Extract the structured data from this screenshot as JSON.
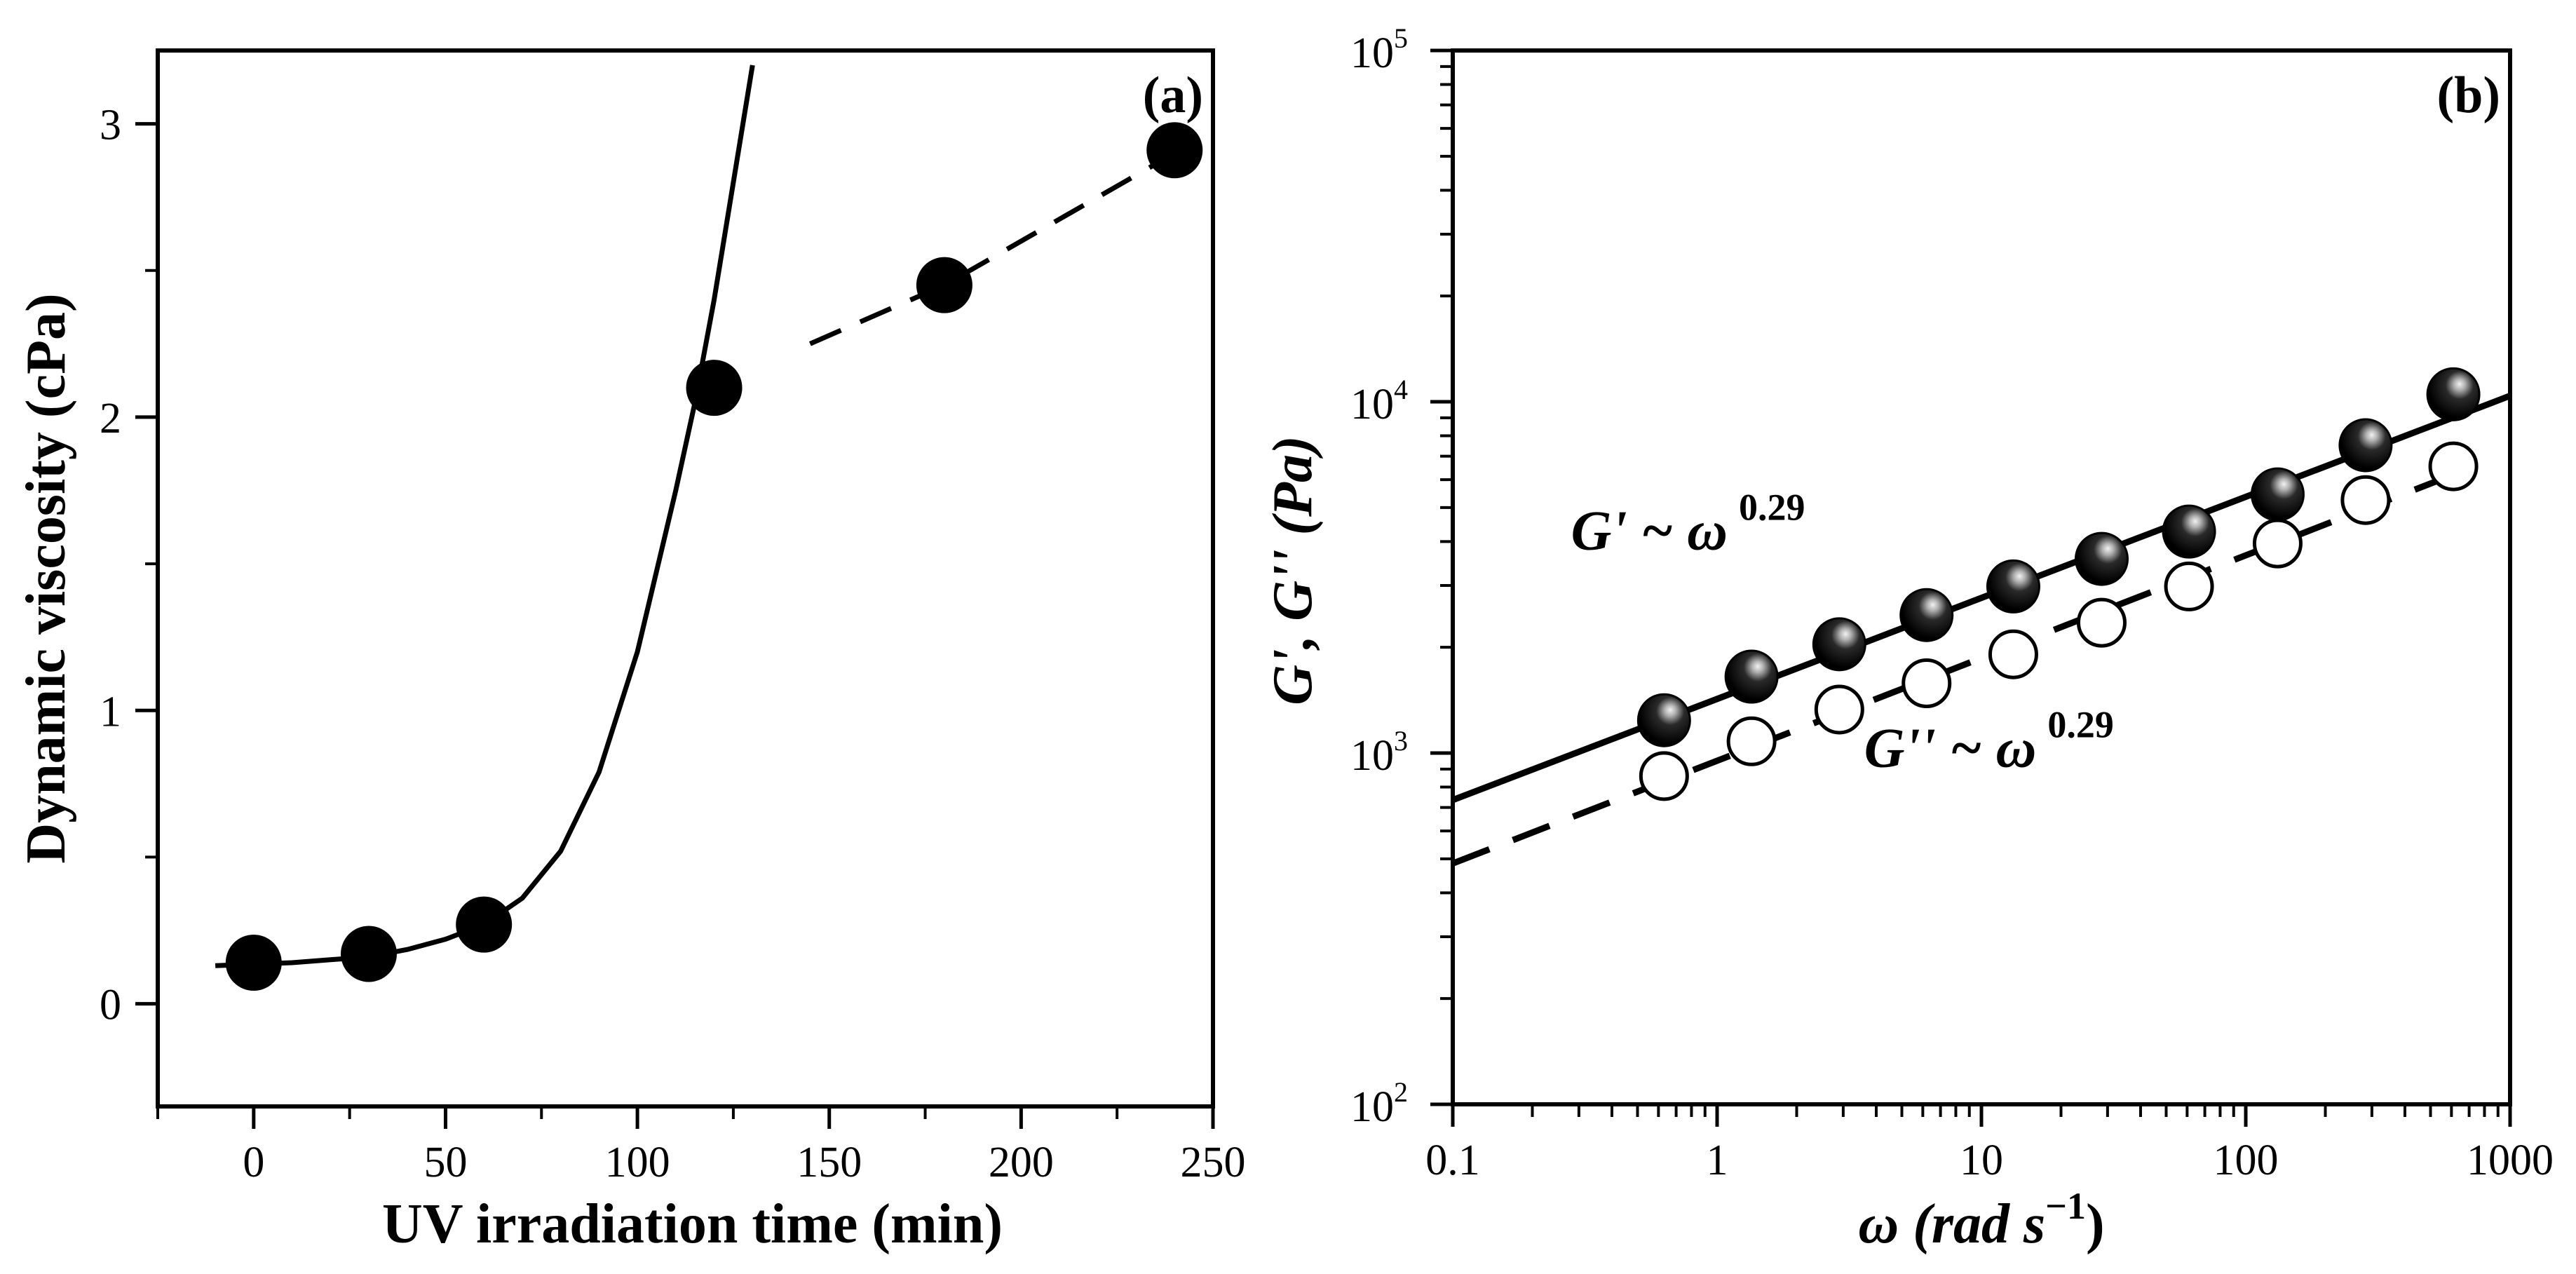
{
  "chart_data": [
    {
      "type": "scatter",
      "panel_label": "(a)",
      "xlabel": "UV irradiation time (min)",
      "ylabel": "Dynamic viscosity (cPa)",
      "xlim": [
        -25,
        250
      ],
      "ylim": [
        -0.35,
        3.25
      ],
      "x_ticks": [
        0,
        50,
        100,
        150,
        200,
        250
      ],
      "y_ticks": [
        0,
        1,
        2,
        3
      ],
      "grid": false,
      "legend": "none",
      "series": [
        {
          "marker": "filled-circle",
          "x": [
            0,
            30,
            60,
            120,
            180,
            240
          ],
          "y": [
            0.14,
            0.17,
            0.27,
            2.1,
            2.45,
            2.91
          ]
        }
      ],
      "fits": [
        {
          "style": "solid",
          "x": [
            -10,
            0,
            10,
            20,
            30,
            40,
            50,
            60,
            70,
            80,
            90,
            100,
            110,
            115,
            120,
            125,
            130
          ],
          "y": [
            0.13,
            0.135,
            0.14,
            0.15,
            0.16,
            0.185,
            0.22,
            0.27,
            0.36,
            0.52,
            0.79,
            1.2,
            1.75,
            2.05,
            2.4,
            2.8,
            3.2
          ]
        },
        {
          "style": "dashed",
          "x": [
            145,
            180,
            240
          ],
          "y": [
            2.25,
            2.45,
            2.9
          ]
        }
      ]
    },
    {
      "type": "scatter",
      "panel_label": "(b)",
      "xlabel": "ω (rad s",
      "xlabel_exp": "−1",
      "xlabel_close": ")",
      "ylabel": "G', G'' (Pa)",
      "x_scale": "log",
      "y_scale": "log",
      "xlim": [
        0.1,
        1000
      ],
      "ylim": [
        100,
        100000
      ],
      "x_ticks": [
        0.1,
        1,
        10,
        100,
        1000
      ],
      "x_tick_labels": [
        "0.1",
        "1",
        "10",
        "100",
        "1000"
      ],
      "y_ticks": [
        100,
        1000,
        10000,
        100000
      ],
      "y_tick_base": "10",
      "y_tick_exps": [
        "2",
        "3",
        "4",
        "5"
      ],
      "grid": false,
      "legend": "none",
      "series": [
        {
          "name": "G'",
          "marker": "filled-circle",
          "x": [
            0.63,
            1.35,
            2.9,
            6.2,
            13.2,
            28.5,
            61,
            132,
            284,
            610
          ],
          "y": [
            1240,
            1650,
            2040,
            2470,
            2980,
            3570,
            4270,
            5450,
            7520,
            10500
          ]
        },
        {
          "name": "G''",
          "marker": "open-circle",
          "x": [
            0.63,
            1.35,
            2.9,
            6.2,
            13.2,
            28.5,
            61,
            132,
            284,
            610
          ],
          "y": [
            860,
            1080,
            1330,
            1580,
            1910,
            2350,
            2980,
            3950,
            5250,
            6550
          ]
        }
      ],
      "fits": [
        {
          "style": "solid",
          "x": [
            0.1,
            1000
          ],
          "y": [
            735,
            10400
          ]
        },
        {
          "style": "dashed",
          "x": [
            0.1,
            610
          ],
          "y": [
            485,
            6200
          ]
        }
      ],
      "annotations": [
        {
          "base": "G' ~ ω",
          "exp": "0.29",
          "x": 0.28,
          "y": 3800
        },
        {
          "base": "G'' ~ ω",
          "exp": "0.29",
          "x": 3.6,
          "y": 915
        }
      ]
    }
  ]
}
